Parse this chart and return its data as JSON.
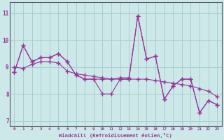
{
  "xlabel": "Windchill (Refroidissement éolien,°C)",
  "x": [
    0,
    1,
    2,
    3,
    4,
    5,
    6,
    7,
    8,
    9,
    10,
    11,
    12,
    13,
    14,
    15,
    16,
    17,
    18,
    19,
    20,
    21,
    22,
    23
  ],
  "line1": [
    8.8,
    9.8,
    9.2,
    9.35,
    9.35,
    9.5,
    9.2,
    8.7,
    8.55,
    8.55,
    8.55,
    8.55,
    8.6,
    8.6,
    10.9,
    9.3,
    9.4,
    7.8,
    8.3,
    8.55,
    8.55,
    7.3,
    7.75,
    7.6
  ],
  "line2": [
    8.8,
    9.8,
    9.2,
    9.35,
    9.35,
    9.5,
    9.2,
    8.7,
    8.55,
    8.55,
    8.0,
    8.0,
    8.55,
    8.55,
    10.9,
    9.3,
    9.4,
    7.8,
    8.3,
    8.55,
    8.55,
    7.3,
    7.75,
    7.6
  ],
  "trend": [
    9.0,
    8.95,
    9.1,
    9.2,
    9.2,
    9.15,
    8.85,
    8.75,
    8.7,
    8.65,
    8.6,
    8.55,
    8.55,
    8.55,
    8.55,
    8.55,
    8.5,
    8.45,
    8.4,
    8.35,
    8.3,
    8.2,
    8.1,
    7.9
  ],
  "color": "#993399",
  "bg_color": "#cce8e8",
  "grid_color": "#aacece",
  "ylim": [
    6.8,
    11.4
  ],
  "xlim": [
    -0.5,
    23.5
  ],
  "yticks": [
    7,
    8,
    9,
    10,
    11
  ]
}
